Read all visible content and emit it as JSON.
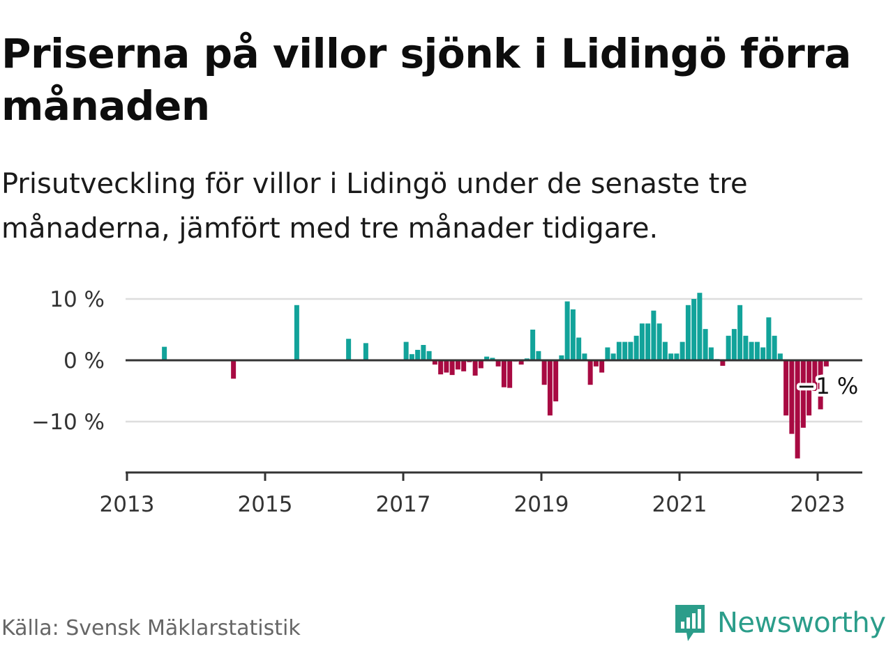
{
  "title": "Priserna på villor sjönk i Lidingö förra månaden",
  "subtitle": "Prisutveckling för villor i Lidingö under de senaste tre månaderna, jämfört med tre månader tidigare.",
  "source": "Källa: Svensk Mäklarstatistik",
  "brand": {
    "name": "Newsworthy",
    "color": "#2b9d8a"
  },
  "colors": {
    "positive": "#12a39a",
    "negative": "#a80a42",
    "axis": "#333333",
    "grid": "#dddddd"
  },
  "chart_data": {
    "type": "bar",
    "title": "Priserna på villor sjönk i Lidingö förra månaden",
    "xlabel": "",
    "ylabel": "",
    "ylim": [
      -18.5,
      10
    ],
    "xlim": [
      "2013-01",
      "2023-07"
    ],
    "y_ticks": [
      {
        "value": 10,
        "label": "10 %"
      },
      {
        "value": 0,
        "label": "0 %"
      },
      {
        "value": -10,
        "label": "−10 %"
      }
    ],
    "x_ticks": [
      "2013",
      "2015",
      "2017",
      "2019",
      "2021",
      "2023"
    ],
    "grid": true,
    "legend": "none",
    "annotation": {
      "x": "2023-02",
      "label": "−1 %"
    },
    "series": [
      {
        "values": [
          {
            "x": "2013-07",
            "y": 2.2
          },
          {
            "x": "2014-07",
            "y": -3.0
          },
          {
            "x": "2015-06",
            "y": 9.0
          },
          {
            "x": "2016-03",
            "y": 3.5
          },
          {
            "x": "2016-06",
            "y": 2.8
          },
          {
            "x": "2017-01",
            "y": 3.0
          },
          {
            "x": "2017-02",
            "y": 1.0
          },
          {
            "x": "2017-03",
            "y": 1.7
          },
          {
            "x": "2017-04",
            "y": 2.5
          },
          {
            "x": "2017-05",
            "y": 1.5
          },
          {
            "x": "2017-06",
            "y": -0.7
          },
          {
            "x": "2017-07",
            "y": -2.3
          },
          {
            "x": "2017-08",
            "y": -2.0
          },
          {
            "x": "2017-09",
            "y": -2.4
          },
          {
            "x": "2017-10",
            "y": -1.5
          },
          {
            "x": "2017-11",
            "y": -1.8
          },
          {
            "x": "2017-12",
            "y": -0.3
          },
          {
            "x": "2018-01",
            "y": -2.5
          },
          {
            "x": "2018-02",
            "y": -1.3
          },
          {
            "x": "2018-03",
            "y": 0.6
          },
          {
            "x": "2018-04",
            "y": 0.4
          },
          {
            "x": "2018-05",
            "y": -1.0
          },
          {
            "x": "2018-06",
            "y": -4.4
          },
          {
            "x": "2018-07",
            "y": -4.5
          },
          {
            "x": "2018-08",
            "y": -0.2
          },
          {
            "x": "2018-09",
            "y": -0.7
          },
          {
            "x": "2018-10",
            "y": 0.3
          },
          {
            "x": "2018-11",
            "y": 5.0
          },
          {
            "x": "2018-12",
            "y": 1.5
          },
          {
            "x": "2019-01",
            "y": -4.0
          },
          {
            "x": "2019-02",
            "y": -9.0
          },
          {
            "x": "2019-03",
            "y": -6.7
          },
          {
            "x": "2019-04",
            "y": 0.8
          },
          {
            "x": "2019-05",
            "y": 9.6
          },
          {
            "x": "2019-06",
            "y": 8.3
          },
          {
            "x": "2019-07",
            "y": 3.7
          },
          {
            "x": "2019-08",
            "y": 1.1
          },
          {
            "x": "2019-09",
            "y": -4.0
          },
          {
            "x": "2019-10",
            "y": -1.0
          },
          {
            "x": "2019-11",
            "y": -2.0
          },
          {
            "x": "2019-12",
            "y": 2.1
          },
          {
            "x": "2020-01",
            "y": 1.1
          },
          {
            "x": "2020-02",
            "y": 3.0
          },
          {
            "x": "2020-03",
            "y": 3.0
          },
          {
            "x": "2020-04",
            "y": 3.0
          },
          {
            "x": "2020-05",
            "y": 4.0
          },
          {
            "x": "2020-06",
            "y": 6.0
          },
          {
            "x": "2020-07",
            "y": 6.0
          },
          {
            "x": "2020-08",
            "y": 8.1
          },
          {
            "x": "2020-09",
            "y": 6.0
          },
          {
            "x": "2020-10",
            "y": 3.0
          },
          {
            "x": "2020-11",
            "y": 1.1
          },
          {
            "x": "2020-12",
            "y": 1.1
          },
          {
            "x": "2021-01",
            "y": 3.0
          },
          {
            "x": "2021-02",
            "y": 9.0
          },
          {
            "x": "2021-03",
            "y": 10.0
          },
          {
            "x": "2021-04",
            "y": 11.0
          },
          {
            "x": "2021-05",
            "y": 5.1
          },
          {
            "x": "2021-06",
            "y": 2.1
          },
          {
            "x": "2021-07",
            "y": 0.2
          },
          {
            "x": "2021-08",
            "y": -0.9
          },
          {
            "x": "2021-09",
            "y": 4.0
          },
          {
            "x": "2021-10",
            "y": 5.1
          },
          {
            "x": "2021-11",
            "y": 9.0
          },
          {
            "x": "2021-12",
            "y": 4.0
          },
          {
            "x": "2022-01",
            "y": 3.0
          },
          {
            "x": "2022-02",
            "y": 3.0
          },
          {
            "x": "2022-03",
            "y": 2.1
          },
          {
            "x": "2022-04",
            "y": 7.0
          },
          {
            "x": "2022-05",
            "y": 4.0
          },
          {
            "x": "2022-06",
            "y": 1.1
          },
          {
            "x": "2022-07",
            "y": -9.0
          },
          {
            "x": "2022-08",
            "y": -12.0
          },
          {
            "x": "2022-09",
            "y": -16.0
          },
          {
            "x": "2022-10",
            "y": -11.0
          },
          {
            "x": "2022-11",
            "y": -9.0
          },
          {
            "x": "2022-12",
            "y": -5.0
          },
          {
            "x": "2023-01",
            "y": -8.0
          },
          {
            "x": "2023-02",
            "y": -1.0
          }
        ]
      }
    ]
  }
}
